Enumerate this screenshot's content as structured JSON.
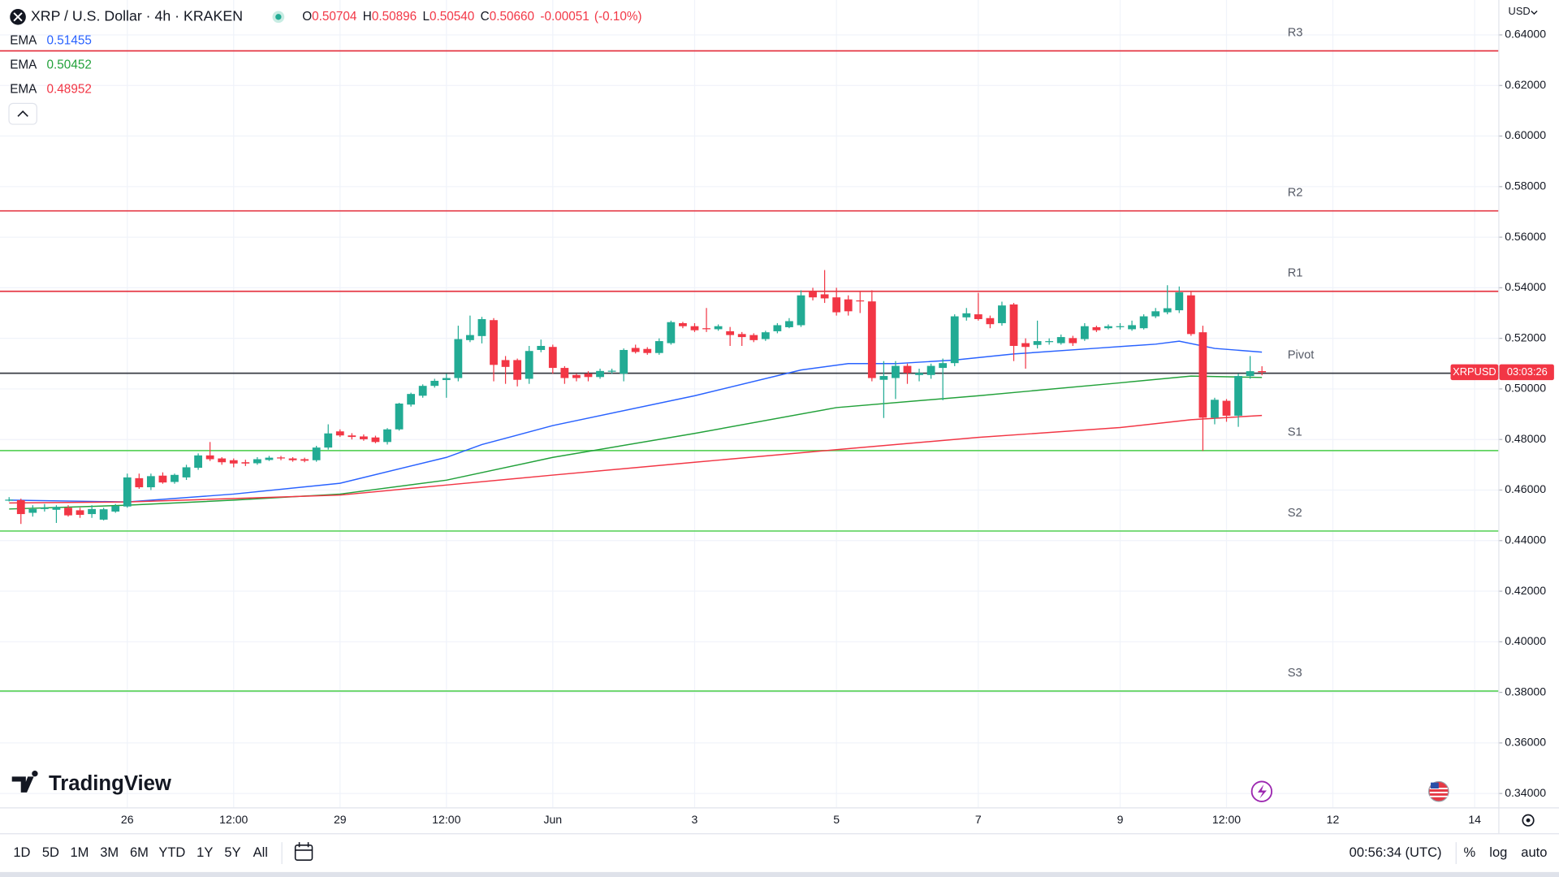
{
  "chart_data": {
    "type": "candlestick",
    "title": "XRP / U.S. Dollar · 4h · KRAKEN",
    "ohlc_legend": [
      {
        "label": "O",
        "value": "0.50704"
      },
      {
        "label": "H",
        "value": "0.50896"
      },
      {
        "label": "L",
        "value": "0.50540"
      },
      {
        "label": "C",
        "value": "0.50660"
      }
    ],
    "change": "-0.00051",
    "change_pct": "(-0.10%)",
    "currency": "USD",
    "up_color": "#22ab94",
    "down_color": "#f23645",
    "x": [
      0,
      1,
      2,
      3,
      4,
      5,
      6,
      7,
      8,
      9,
      10,
      11,
      12,
      13,
      14,
      15,
      16,
      17,
      18,
      19,
      20,
      21,
      22,
      23,
      24,
      25,
      26,
      27,
      28,
      29,
      30,
      31,
      32,
      33,
      34,
      35,
      36,
      37,
      38,
      39,
      40,
      41,
      42,
      43,
      44,
      45,
      46,
      47,
      48,
      49,
      50,
      51,
      52,
      53,
      54,
      55,
      56,
      57,
      58,
      59,
      60,
      61,
      62,
      63,
      64,
      65,
      66,
      67,
      68,
      69,
      70,
      71,
      72,
      73,
      74,
      75,
      76,
      77,
      78,
      79,
      80,
      81,
      82,
      83,
      84,
      85,
      86,
      87,
      88,
      89,
      90,
      91,
      92,
      93,
      94,
      95,
      96,
      97,
      98,
      99,
      100,
      101,
      102,
      103,
      104,
      105,
      106
    ],
    "open": [
      0.4558,
      0.456,
      0.451,
      0.4525,
      0.4522,
      0.453,
      0.452,
      0.4505,
      0.4483,
      0.4515,
      0.4535,
      0.4647,
      0.4611,
      0.4657,
      0.4632,
      0.465,
      0.4688,
      0.4737,
      0.4725,
      0.4718,
      0.471,
      0.4706,
      0.4719,
      0.4729,
      0.4725,
      0.4722,
      0.4718,
      0.4768,
      0.4832,
      0.4816,
      0.4812,
      0.4808,
      0.479,
      0.484,
      0.4938,
      0.4973,
      0.5012,
      0.5035,
      0.5043,
      0.5193,
      0.5209,
      0.5272,
      0.5114,
      0.5114,
      0.504,
      0.5154,
      0.5166,
      0.5083,
      0.5055,
      0.506,
      0.5047,
      0.5068,
      0.506,
      0.5162,
      0.5158,
      0.5142,
      0.5181,
      0.526,
      0.5248,
      0.524,
      0.5236,
      0.5228,
      0.5217,
      0.5213,
      0.5197,
      0.5228,
      0.5244,
      0.5252,
      0.5386,
      0.5374,
      0.5362,
      0.5354,
      0.535,
      0.5346,
      0.5036,
      0.5043,
      0.5091,
      0.5055,
      0.5055,
      0.5083,
      0.5102,
      0.5283,
      0.5295,
      0.528,
      0.526,
      0.5334,
      0.5181,
      0.5174,
      0.5185,
      0.5181,
      0.5201,
      0.5197,
      0.5244,
      0.524,
      0.5244,
      0.5236,
      0.524,
      0.5287,
      0.5303,
      0.5311,
      0.537,
      0.5224,
      0.4886,
      0.4953,
      0.4894,
      0.5051,
      0.50704
    ],
    "high": [
      0.4572,
      0.4566,
      0.454,
      0.4545,
      0.454,
      0.454,
      0.453,
      0.454,
      0.453,
      0.4545,
      0.4665,
      0.4665,
      0.4665,
      0.467,
      0.4665,
      0.47,
      0.4745,
      0.479,
      0.473,
      0.4725,
      0.472,
      0.473,
      0.4735,
      0.4735,
      0.473,
      0.4728,
      0.4775,
      0.486,
      0.484,
      0.4825,
      0.482,
      0.4815,
      0.4845,
      0.4945,
      0.4985,
      0.5018,
      0.504,
      0.506,
      0.525,
      0.529,
      0.5285,
      0.528,
      0.513,
      0.512,
      0.517,
      0.5195,
      0.5175,
      0.509,
      0.506,
      0.507,
      0.508,
      0.508,
      0.516,
      0.5175,
      0.5165,
      0.52,
      0.527,
      0.5265,
      0.526,
      0.532,
      0.5255,
      0.5245,
      0.5225,
      0.522,
      0.523,
      0.526,
      0.528,
      0.539,
      0.54,
      0.547,
      0.54,
      0.537,
      0.5385,
      0.539,
      0.511,
      0.511,
      0.51,
      0.508,
      0.51,
      0.512,
      0.5295,
      0.532,
      0.538,
      0.529,
      0.5345,
      0.534,
      0.52,
      0.527,
      0.52,
      0.5215,
      0.521,
      0.526,
      0.525,
      0.5255,
      0.526,
      0.527,
      0.5295,
      0.532,
      0.541,
      0.5405,
      0.5385,
      0.525,
      0.4965,
      0.496,
      0.506,
      0.513,
      0.50896
    ],
    "low": [
      0.4555,
      0.4466,
      0.4495,
      0.4515,
      0.447,
      0.4495,
      0.449,
      0.449,
      0.448,
      0.451,
      0.453,
      0.4605,
      0.46,
      0.4625,
      0.4625,
      0.464,
      0.468,
      0.4715,
      0.47,
      0.469,
      0.4695,
      0.47,
      0.4715,
      0.4718,
      0.4712,
      0.471,
      0.4712,
      0.476,
      0.481,
      0.48,
      0.4795,
      0.4785,
      0.478,
      0.4835,
      0.493,
      0.4965,
      0.5005,
      0.4965,
      0.503,
      0.5185,
      0.518,
      0.503,
      0.502,
      0.501,
      0.502,
      0.5145,
      0.506,
      0.502,
      0.503,
      0.503,
      0.504,
      0.506,
      0.503,
      0.514,
      0.5135,
      0.5135,
      0.5175,
      0.524,
      0.5225,
      0.5225,
      0.523,
      0.517,
      0.517,
      0.5185,
      0.519,
      0.522,
      0.524,
      0.5245,
      0.535,
      0.534,
      0.529,
      0.529,
      0.53,
      0.503,
      0.4885,
      0.496,
      0.502,
      0.503,
      0.504,
      0.4955,
      0.509,
      0.527,
      0.527,
      0.524,
      0.525,
      0.511,
      0.508,
      0.516,
      0.5175,
      0.5175,
      0.517,
      0.519,
      0.5225,
      0.5235,
      0.5235,
      0.523,
      0.5235,
      0.528,
      0.5295,
      0.53,
      0.521,
      0.4755,
      0.486,
      0.487,
      0.485,
      0.504,
      0.5054
    ],
    "close": [
      0.4562,
      0.4505,
      0.4525,
      0.453,
      0.4533,
      0.45,
      0.4502,
      0.4525,
      0.4524,
      0.4537,
      0.465,
      0.4611,
      0.4655,
      0.463,
      0.466,
      0.469,
      0.4737,
      0.4722,
      0.471,
      0.4705,
      0.4705,
      0.4722,
      0.4728,
      0.4725,
      0.4718,
      0.4716,
      0.4768,
      0.4824,
      0.4816,
      0.481,
      0.4801,
      0.479,
      0.484,
      0.4942,
      0.498,
      0.5012,
      0.5032,
      0.5043,
      0.5197,
      0.5213,
      0.5276,
      0.5095,
      0.5087,
      0.5036,
      0.515,
      0.517,
      0.5083,
      0.5043,
      0.5043,
      0.5047,
      0.5071,
      0.5072,
      0.5154,
      0.5146,
      0.5142,
      0.5189,
      0.5264,
      0.5248,
      0.5232,
      0.5236,
      0.5248,
      0.5213,
      0.5205,
      0.5193,
      0.5224,
      0.5252,
      0.5268,
      0.537,
      0.5362,
      0.5358,
      0.5303,
      0.5307,
      0.5346,
      0.5043,
      0.5051,
      0.5091,
      0.5063,
      0.5063,
      0.5091,
      0.5102,
      0.5287,
      0.5299,
      0.5276,
      0.5256,
      0.533,
      0.517,
      0.5166,
      0.5189,
      0.5189,
      0.5205,
      0.5181,
      0.5248,
      0.5232,
      0.5248,
      0.5248,
      0.5252,
      0.5287,
      0.5307,
      0.5319,
      0.5382,
      0.5217,
      0.4886,
      0.4957,
      0.4894,
      0.5051,
      0.507,
      0.5066
    ],
    "ema": [
      {
        "name": "EMA",
        "value_label": "0.51455",
        "color": "#2962ff",
        "x": [
          0,
          10,
          19,
          28,
          37,
          40,
          46,
          58,
          67,
          71,
          75,
          80,
          85,
          92,
          97,
          99,
          102,
          106
        ],
        "values": [
          0.456,
          0.4553,
          0.4584,
          0.4627,
          0.4729,
          0.478,
          0.4855,
          0.4973,
          0.5075,
          0.51,
          0.51,
          0.5114,
          0.5138,
          0.5161,
          0.5177,
          0.5189,
          0.516,
          0.51455
        ]
      },
      {
        "name": "EMA",
        "value_label": "0.50452",
        "color": "#22a13a",
        "x": [
          0,
          10,
          19,
          28,
          37,
          46,
          58,
          70,
          82,
          94,
          100,
          106
        ],
        "values": [
          0.4525,
          0.454,
          0.456,
          0.4584,
          0.4639,
          0.4729,
          0.4824,
          0.4926,
          0.4973,
          0.5024,
          0.5051,
          0.50452
        ]
      },
      {
        "name": "EMA",
        "value_label": "0.48952",
        "color": "#f23645",
        "x": [
          0,
          10,
          28,
          37,
          46,
          58,
          70,
          82,
          94,
          100,
          106
        ],
        "values": [
          0.4549,
          0.4553,
          0.458,
          0.462,
          0.4659,
          0.471,
          0.476,
          0.4808,
          0.4847,
          0.4878,
          0.48952
        ]
      }
    ],
    "levels": [
      {
        "name": "R3",
        "value": 0.6337,
        "color": "#e53945"
      },
      {
        "name": "R2",
        "value": 0.5704,
        "color": "#e53945"
      },
      {
        "name": "R1",
        "value": 0.5386,
        "color": "#e53945"
      },
      {
        "name": "Pivot",
        "value": 0.5062,
        "color": "#3a3d45"
      },
      {
        "name": "S1",
        "value": 0.4756,
        "color": "#5fd35f"
      },
      {
        "name": "S2",
        "value": 0.4438,
        "color": "#5fd35f"
      },
      {
        "name": "S3",
        "value": 0.3805,
        "color": "#5fd35f"
      }
    ],
    "price_tag": {
      "symbol": "XRPUSD",
      "countdown": "03:03:26"
    },
    "ylim": [
      0.3345,
      0.6538
    ],
    "yticks": [
      {
        "value": 0.34,
        "label": "0.34000"
      },
      {
        "value": 0.36,
        "label": "0.36000"
      },
      {
        "value": 0.38,
        "label": "0.38000"
      },
      {
        "value": 0.4,
        "label": "0.40000"
      },
      {
        "value": 0.42,
        "label": "0.42000"
      },
      {
        "value": 0.44,
        "label": "0.44000"
      },
      {
        "value": 0.46,
        "label": "0.46000"
      },
      {
        "value": 0.48,
        "label": "0.48000"
      },
      {
        "value": 0.5,
        "label": "0.50000"
      },
      {
        "value": 0.52,
        "label": "0.52000"
      },
      {
        "value": 0.54,
        "label": "0.54000"
      },
      {
        "value": 0.56,
        "label": "0.56000"
      },
      {
        "value": 0.58,
        "label": "0.58000"
      },
      {
        "value": 0.6,
        "label": "0.60000"
      },
      {
        "value": 0.62,
        "label": "0.62000"
      },
      {
        "value": 0.64,
        "label": "0.64000"
      }
    ],
    "xlim": [
      -0.77,
      126.0
    ],
    "xticks": [
      {
        "value": 10,
        "label": "26"
      },
      {
        "value": 19,
        "label": "12:00"
      },
      {
        "value": 28,
        "label": "29"
      },
      {
        "value": 37,
        "label": "12:00"
      },
      {
        "value": 46,
        "label": "Jun"
      },
      {
        "value": 58,
        "label": "3"
      },
      {
        "value": 70,
        "label": "5"
      },
      {
        "value": 82,
        "label": "7"
      },
      {
        "value": 94,
        "label": "9"
      },
      {
        "value": 103,
        "label": "12:00"
      },
      {
        "value": 112,
        "label": "12"
      },
      {
        "value": 124,
        "label": "14"
      }
    ],
    "grid": true
  },
  "ui": {
    "brand": "TradingView",
    "ranges": [
      "1D",
      "5D",
      "1M",
      "3M",
      "6M",
      "YTD",
      "1Y",
      "5Y",
      "All"
    ],
    "clock": "00:56:34 (UTC)",
    "options": [
      "%",
      "log",
      "auto"
    ]
  }
}
